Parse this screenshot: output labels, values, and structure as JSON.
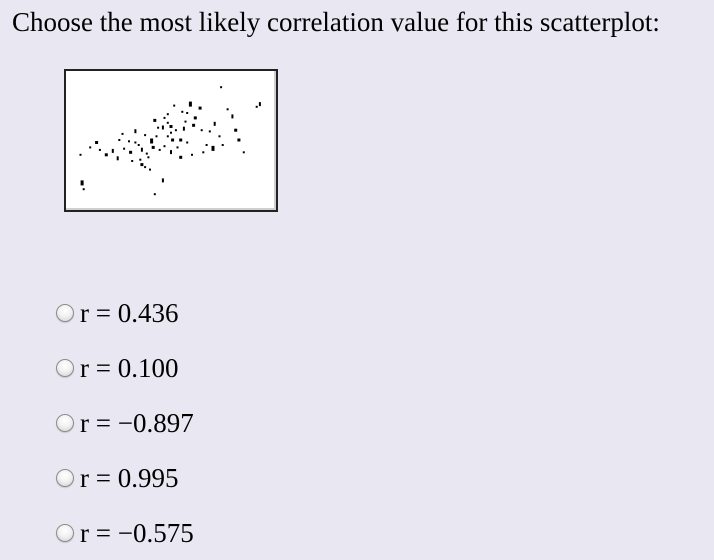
{
  "question": "Choose the most likely correlation value for this scatterplot:",
  "scatterplot": {
    "colors": {
      "points": "#000000",
      "frame": "#222222",
      "background": "#ffffff"
    },
    "points": [
      [
        0.72,
        0.82
      ],
      [
        0.62,
        0.8
      ],
      [
        0.67,
        0.75
      ],
      [
        0.7,
        0.74
      ],
      [
        0.78,
        0.78
      ],
      [
        0.98,
        0.72
      ],
      [
        0.95,
        0.77
      ],
      [
        0.56,
        0.7
      ],
      [
        0.5,
        0.68
      ],
      [
        0.52,
        0.62
      ],
      [
        0.55,
        0.63
      ],
      [
        0.58,
        0.66
      ],
      [
        0.6,
        0.63
      ],
      [
        0.63,
        0.6
      ],
      [
        0.6,
        0.58
      ],
      [
        0.68,
        0.62
      ],
      [
        0.74,
        0.64
      ],
      [
        0.79,
        0.6
      ],
      [
        0.84,
        0.59
      ],
      [
        0.82,
        0.48
      ],
      [
        0.86,
        0.46
      ],
      [
        0.92,
        0.48
      ],
      [
        0.8,
        0.42
      ],
      [
        0.73,
        0.4
      ],
      [
        0.66,
        0.38
      ],
      [
        0.6,
        0.43
      ],
      [
        0.56,
        0.47
      ],
      [
        0.53,
        0.44
      ],
      [
        0.49,
        0.46
      ],
      [
        0.45,
        0.41
      ],
      [
        0.42,
        0.45
      ],
      [
        0.38,
        0.5
      ],
      [
        0.35,
        0.42
      ],
      [
        0.31,
        0.45
      ],
      [
        0.28,
        0.52
      ],
      [
        0.24,
        0.44
      ],
      [
        0.2,
        0.4
      ],
      [
        0.16,
        0.44
      ],
      [
        0.1,
        0.46
      ],
      [
        0.04,
        0.4
      ],
      [
        0.05,
        0.18
      ],
      [
        0.06,
        0.12
      ],
      [
        0.44,
        0.3
      ],
      [
        0.47,
        0.28
      ],
      [
        0.42,
        0.32
      ],
      [
        0.55,
        0.2
      ],
      [
        0.5,
        0.08
      ],
      [
        0.58,
        0.55
      ],
      [
        0.61,
        0.52
      ],
      [
        0.44,
        0.56
      ],
      [
        0.38,
        0.6
      ],
      [
        0.3,
        0.57
      ],
      [
        0.66,
        0.52
      ],
      [
        0.64,
        0.46
      ],
      [
        0.7,
        0.5
      ],
      [
        0.87,
        0.66
      ],
      [
        1.02,
        0.52
      ],
      [
        1.05,
        0.42
      ],
      [
        0.46,
        0.38
      ],
      [
        0.41,
        0.36
      ],
      [
        0.48,
        0.52
      ],
      [
        0.51,
        0.55
      ],
      [
        0.4,
        0.48
      ],
      [
        0.34,
        0.51
      ],
      [
        0.14,
        0.5
      ],
      [
        0.27,
        0.38
      ],
      [
        0.36,
        0.35
      ],
      [
        0.69,
        0.67
      ],
      [
        0.75,
        0.7
      ],
      [
        0.91,
        0.95
      ],
      [
        1.15,
        0.82
      ],
      [
        1.13,
        0.79
      ],
      [
        1.0,
        0.6
      ],
      [
        0.58,
        0.73
      ],
      [
        0.9,
        0.55
      ]
    ]
  },
  "options": [
    {
      "label": "r = 0.436"
    },
    {
      "label": "r = 0.100"
    },
    {
      "label": "r = −0.897"
    },
    {
      "label": "r = 0.995"
    },
    {
      "label": "r = −0.575"
    }
  ]
}
